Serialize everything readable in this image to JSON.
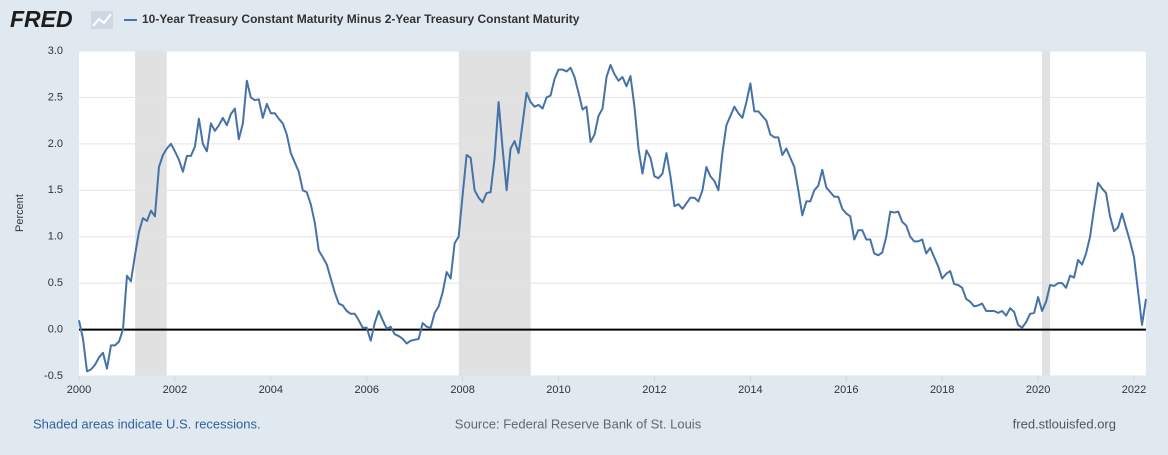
{
  "logo": "FRED",
  "chart_data": {
    "type": "line",
    "series": [
      {
        "name": "10-Year Treasury Constant Maturity Minus 2-Year Treasury Constant Maturity",
        "color": "#4572a7",
        "values": [
          0.1,
          -0.1,
          -0.45,
          -0.43,
          -0.38,
          -0.3,
          -0.25,
          -0.42,
          -0.17,
          -0.17,
          -0.13,
          0.0,
          0.58,
          0.52,
          0.8,
          1.05,
          1.2,
          1.17,
          1.28,
          1.22,
          1.75,
          1.88,
          1.95,
          2.0,
          1.92,
          1.83,
          1.7,
          1.87,
          1.87,
          1.97,
          2.27,
          2.0,
          1.92,
          2.22,
          2.14,
          2.2,
          2.28,
          2.2,
          2.32,
          2.38,
          2.05,
          2.22,
          2.68,
          2.5,
          2.47,
          2.48,
          2.28,
          2.43,
          2.33,
          2.33,
          2.27,
          2.22,
          2.1,
          1.9,
          1.8,
          1.7,
          1.5,
          1.48,
          1.35,
          1.15,
          0.85,
          0.78,
          0.7,
          0.55,
          0.4,
          0.28,
          0.26,
          0.2,
          0.17,
          0.17,
          0.1,
          0.02,
          0.02,
          -0.12,
          0.07,
          0.2,
          0.1,
          0.01,
          0.03,
          -0.05,
          -0.07,
          -0.1,
          -0.15,
          -0.12,
          -0.11,
          -0.1,
          0.07,
          0.03,
          0.02,
          0.18,
          0.25,
          0.4,
          0.62,
          0.55,
          0.93,
          1.0,
          1.45,
          1.88,
          1.85,
          1.5,
          1.42,
          1.37,
          1.47,
          1.48,
          1.85,
          2.45,
          1.95,
          1.5,
          1.95,
          2.03,
          1.9,
          2.22,
          2.55,
          2.45,
          2.4,
          2.42,
          2.38,
          2.5,
          2.52,
          2.7,
          2.8,
          2.8,
          2.78,
          2.82,
          2.72,
          2.55,
          2.37,
          2.4,
          2.02,
          2.1,
          2.3,
          2.38,
          2.72,
          2.85,
          2.75,
          2.68,
          2.72,
          2.62,
          2.73,
          2.4,
          1.95,
          1.68,
          1.93,
          1.85,
          1.65,
          1.63,
          1.68,
          1.9,
          1.65,
          1.33,
          1.35,
          1.3,
          1.36,
          1.42,
          1.42,
          1.38,
          1.5,
          1.75,
          1.65,
          1.6,
          1.5,
          1.9,
          2.2,
          2.3,
          2.4,
          2.33,
          2.28,
          2.45,
          2.65,
          2.35,
          2.35,
          2.3,
          2.25,
          2.1,
          2.07,
          2.07,
          1.88,
          1.95,
          1.85,
          1.75,
          1.5,
          1.23,
          1.38,
          1.38,
          1.5,
          1.55,
          1.72,
          1.53,
          1.48,
          1.43,
          1.43,
          1.3,
          1.25,
          1.22,
          0.97,
          1.07,
          1.07,
          0.97,
          0.97,
          0.82,
          0.8,
          0.83,
          1.0,
          1.27,
          1.26,
          1.27,
          1.16,
          1.12,
          1.0,
          0.95,
          0.95,
          0.97,
          0.82,
          0.88,
          0.78,
          0.68,
          0.55,
          0.6,
          0.63,
          0.49,
          0.48,
          0.45,
          0.33,
          0.3,
          0.25,
          0.26,
          0.28,
          0.2,
          0.2,
          0.2,
          0.18,
          0.2,
          0.15,
          0.23,
          0.19,
          0.05,
          0.02,
          0.08,
          0.17,
          0.18,
          0.35,
          0.2,
          0.3,
          0.48,
          0.47,
          0.5,
          0.5,
          0.45,
          0.58,
          0.56,
          0.75,
          0.7,
          0.82,
          1.0,
          1.3,
          1.58,
          1.52,
          1.47,
          1.22,
          1.06,
          1.1,
          1.25,
          1.1,
          0.95,
          0.78,
          0.42,
          0.05,
          0.33
        ]
      }
    ],
    "x": [
      2000,
      2000.083,
      2000.167,
      2000.25,
      2000.333,
      2000.417,
      2000.5,
      2000.583,
      2000.667,
      2000.75,
      2000.833,
      2000.917,
      2001,
      2001.083,
      2001.167,
      2001.25,
      2001.333,
      2001.417,
      2001.5,
      2001.583,
      2001.667,
      2001.75,
      2001.833,
      2001.917,
      2002,
      2002.083,
      2002.167,
      2002.25,
      2002.333,
      2002.417,
      2002.5,
      2002.583,
      2002.667,
      2002.75,
      2002.833,
      2002.917,
      2003,
      2003.083,
      2003.167,
      2003.25,
      2003.333,
      2003.417,
      2003.5,
      2003.583,
      2003.667,
      2003.75,
      2003.833,
      2003.917,
      2004,
      2004.083,
      2004.167,
      2004.25,
      2004.333,
      2004.417,
      2004.5,
      2004.583,
      2004.667,
      2004.75,
      2004.833,
      2004.917,
      2005,
      2005.083,
      2005.167,
      2005.25,
      2005.333,
      2005.417,
      2005.5,
      2005.583,
      2005.667,
      2005.75,
      2005.833,
      2005.917,
      2006,
      2006.083,
      2006.167,
      2006.25,
      2006.333,
      2006.417,
      2006.5,
      2006.583,
      2006.667,
      2006.75,
      2006.833,
      2006.917,
      2007,
      2007.083,
      2007.167,
      2007.25,
      2007.333,
      2007.417,
      2007.5,
      2007.583,
      2007.667,
      2007.75,
      2007.833,
      2007.917,
      2008,
      2008.083,
      2008.167,
      2008.25,
      2008.333,
      2008.417,
      2008.5,
      2008.583,
      2008.667,
      2008.75,
      2008.833,
      2008.917,
      2009,
      2009.083,
      2009.167,
      2009.25,
      2009.333,
      2009.417,
      2009.5,
      2009.583,
      2009.667,
      2009.75,
      2009.833,
      2009.917,
      2010,
      2010.083,
      2010.167,
      2010.25,
      2010.333,
      2010.417,
      2010.5,
      2010.583,
      2010.667,
      2010.75,
      2010.833,
      2010.917,
      2011,
      2011.083,
      2011.167,
      2011.25,
      2011.333,
      2011.417,
      2011.5,
      2011.583,
      2011.667,
      2011.75,
      2011.833,
      2011.917,
      2012,
      2012.083,
      2012.167,
      2012.25,
      2012.333,
      2012.417,
      2012.5,
      2012.583,
      2012.667,
      2012.75,
      2012.833,
      2012.917,
      2013,
      2013.083,
      2013.167,
      2013.25,
      2013.333,
      2013.417,
      2013.5,
      2013.583,
      2013.667,
      2013.75,
      2013.833,
      2013.917,
      2014,
      2014.083,
      2014.167,
      2014.25,
      2014.333,
      2014.417,
      2014.5,
      2014.583,
      2014.667,
      2014.75,
      2014.833,
      2014.917,
      2015,
      2015.083,
      2015.167,
      2015.25,
      2015.333,
      2015.417,
      2015.5,
      2015.583,
      2015.667,
      2015.75,
      2015.833,
      2015.917,
      2016,
      2016.083,
      2016.167,
      2016.25,
      2016.333,
      2016.417,
      2016.5,
      2016.583,
      2016.667,
      2016.75,
      2016.833,
      2016.917,
      2017,
      2017.083,
      2017.167,
      2017.25,
      2017.333,
      2017.417,
      2017.5,
      2017.583,
      2017.667,
      2017.75,
      2017.833,
      2017.917,
      2018,
      2018.083,
      2018.167,
      2018.25,
      2018.333,
      2018.417,
      2018.5,
      2018.583,
      2018.667,
      2018.75,
      2018.833,
      2018.917,
      2019,
      2019.083,
      2019.167,
      2019.25,
      2019.333,
      2019.417,
      2019.5,
      2019.583,
      2019.667,
      2019.75,
      2019.833,
      2019.917,
      2020,
      2020.083,
      2020.167,
      2020.25,
      2020.333,
      2020.417,
      2020.5,
      2020.583,
      2020.667,
      2020.75,
      2020.833,
      2020.917,
      2021,
      2021.083,
      2021.167,
      2021.25,
      2021.333,
      2021.417,
      2021.5,
      2021.583,
      2021.667,
      2021.75,
      2021.833,
      2021.917,
      2022,
      2022.083,
      2022.167,
      2022.25
    ],
    "recessions": [
      [
        2001.17,
        2001.83
      ],
      [
        2007.92,
        2009.42
      ],
      [
        2020.08,
        2020.25
      ]
    ],
    "recession_color": "#e1e1e1",
    "xlim": [
      2000,
      2022.25
    ],
    "xticks": [
      2000,
      2002,
      2004,
      2006,
      2008,
      2010,
      2012,
      2014,
      2016,
      2018,
      2020,
      2022
    ],
    "ylim": [
      -0.5,
      3.0
    ],
    "yticks": [
      -0.5,
      {
        "value": 0,
        "label": "0.0"
      },
      0.5,
      {
        "value": 1,
        "label": "1.0"
      },
      1.5,
      {
        "value": 2,
        "label": "2.0"
      },
      2.5,
      {
        "value": 3,
        "label": "3.0"
      }
    ],
    "ylabel": "Percent",
    "grid": true,
    "footer_left": "Shaded areas indicate U.S. recessions.",
    "footer_center": "Source: Federal Reserve Bank of St. Louis",
    "footer_right": "fred.stlouisfed.org"
  }
}
